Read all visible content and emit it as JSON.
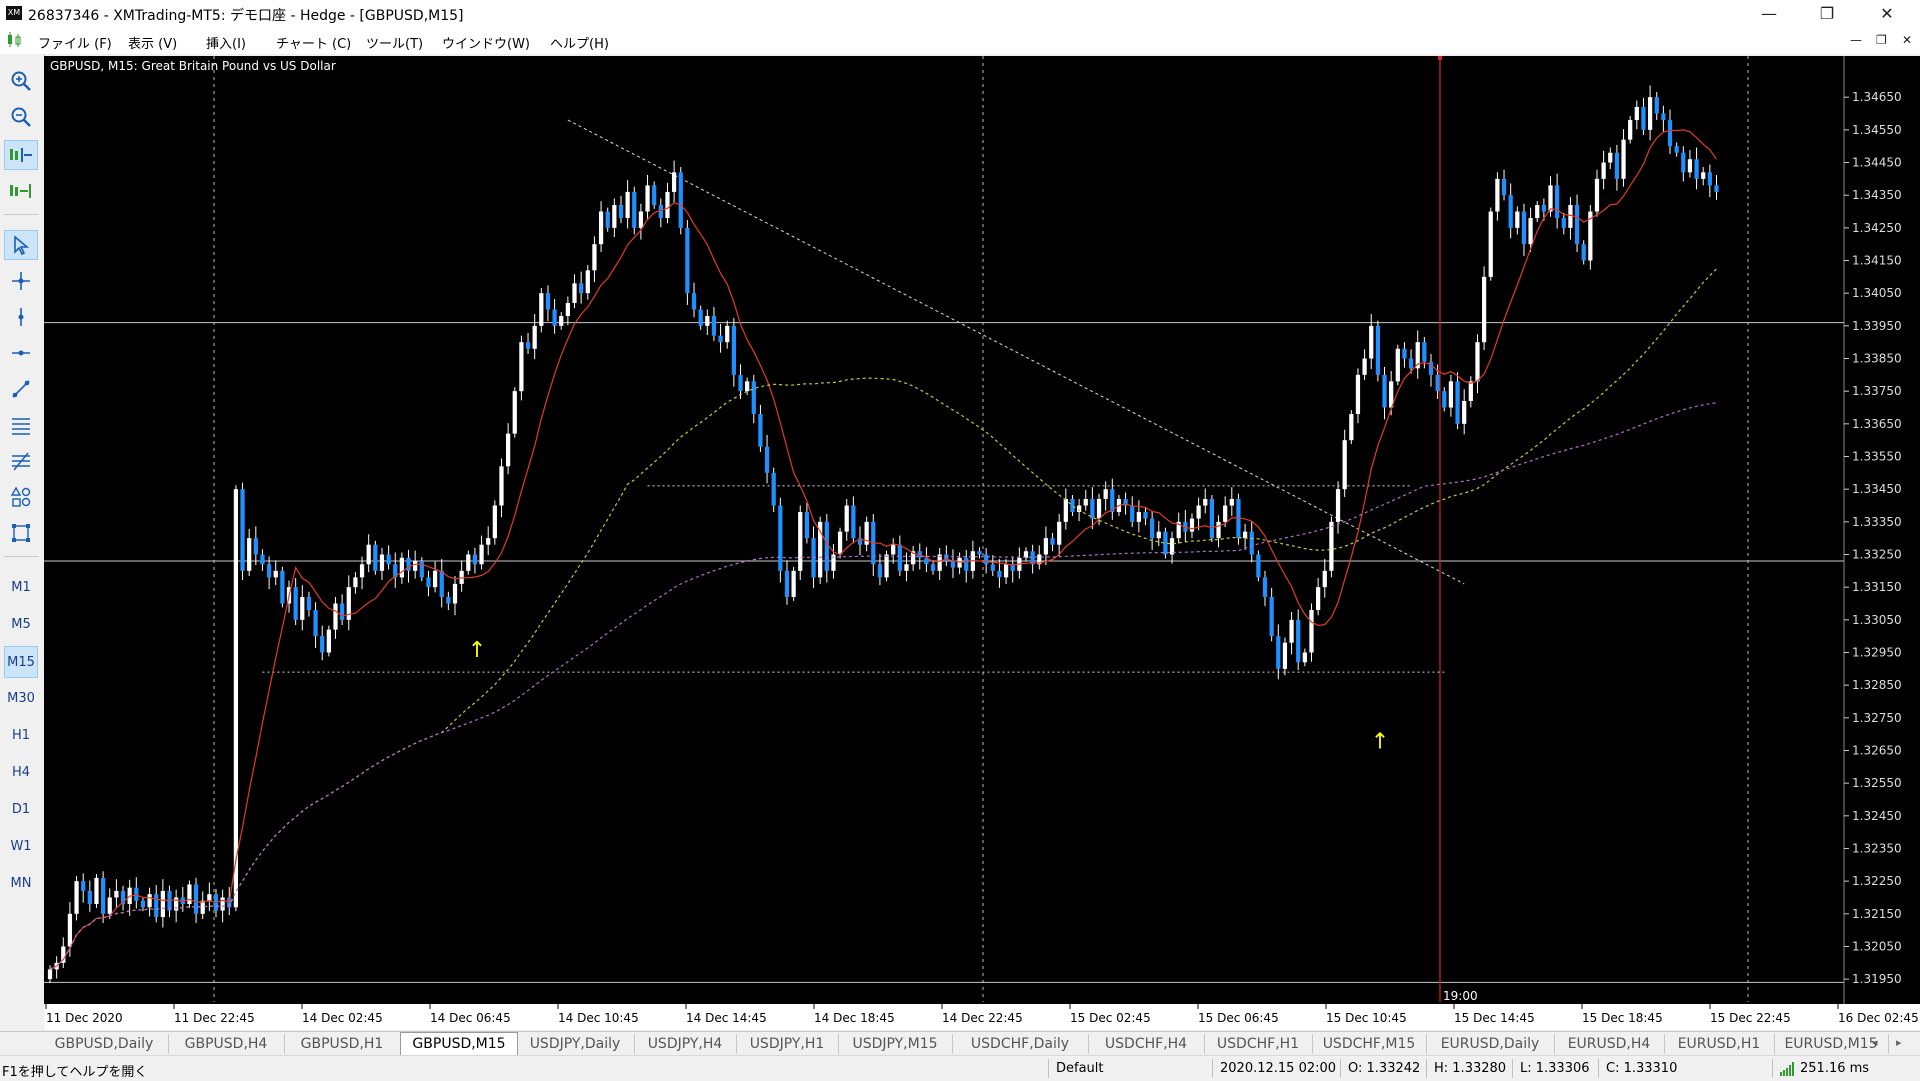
{
  "window": {
    "logo": "XM",
    "title": "26837346 - XMTrading-MT5: デモ口座 - Hedge - [GBPUSD,M15]",
    "minimize": "—",
    "restore": "❐",
    "close": "✕"
  },
  "menu": {
    "items": [
      "ファイル (F)",
      "表示 (V)",
      "挿入(I)",
      "チャート (C)",
      "ツール(T)",
      "ウインドウ(W)",
      "ヘルプ(H)"
    ],
    "mdi_min": "—",
    "mdi_restore": "❐",
    "mdi_close": "✕"
  },
  "toolbar": {
    "tools": [
      {
        "name": "zoom-in-icon",
        "glyph": "⊕"
      },
      {
        "name": "zoom-out-icon",
        "glyph": "⊖"
      },
      {
        "name": "chart-shift-icon",
        "glyph": "⇤"
      },
      {
        "name": "auto-scroll-icon",
        "glyph": "⇥"
      },
      {
        "name": "cursor-icon",
        "glyph": "↖"
      },
      {
        "name": "crosshair-icon",
        "glyph": "✛"
      },
      {
        "name": "vertical-line-icon",
        "glyph": "┃"
      },
      {
        "name": "horizontal-line-icon",
        "glyph": "━"
      },
      {
        "name": "trendline-icon",
        "glyph": "╱"
      },
      {
        "name": "channel-icon",
        "glyph": "☰"
      },
      {
        "name": "fibonacci-icon",
        "glyph": "≋"
      },
      {
        "name": "shapes-icon",
        "glyph": "△"
      },
      {
        "name": "rectangle-icon",
        "glyph": "▢"
      }
    ],
    "timeframes": [
      "M1",
      "M5",
      "M15",
      "M30",
      "H1",
      "H4",
      "D1",
      "W1",
      "MN"
    ],
    "active_timeframe": "M15"
  },
  "chart": {
    "header": "GBPUSD, M15:  Great Britain Pound vs US Dollar",
    "vline_label": "19:00",
    "colors": {
      "background": "#000000",
      "bull_fill": "#ffffff",
      "bear_fill": "#1e90ff",
      "wick": "#ffffff",
      "ma_red": "#e03c28",
      "ma_yellow": "#c8c83c",
      "ma_violet": "#b070c8",
      "vline": "#e02020",
      "arrow": "#ffff00",
      "grid": "#c8c8c8"
    },
    "arrow_glyph": "↑"
  },
  "chart_data": {
    "type": "candlestick",
    "symbol": "GBPUSD",
    "timeframe": "M15",
    "title": "GBPUSD, M15:  Great Britain Pound vs US Dollar",
    "price_ticks": [
      "1.34650",
      "1.34550",
      "1.34450",
      "1.34350",
      "1.34250",
      "1.34150",
      "1.34050",
      "1.33950",
      "1.33850",
      "1.33750",
      "1.33650",
      "1.33550",
      "1.33450",
      "1.33350",
      "1.33250",
      "1.33150",
      "1.33050",
      "1.32950",
      "1.32850",
      "1.32750",
      "1.32650",
      "1.32550",
      "1.32450",
      "1.32350",
      "1.32250",
      "1.32150",
      "1.32050",
      "1.31950"
    ],
    "time_ticks": [
      "11 Dec 2020",
      "11 Dec 22:45",
      "14 Dec 02:45",
      "14 Dec 06:45",
      "14 Dec 10:45",
      "14 Dec 14:45",
      "14 Dec 18:45",
      "14 Dec 22:45",
      "15 Dec 02:45",
      "15 Dec 06:45",
      "15 Dec 10:45",
      "15 Dec 14:45",
      "15 Dec 18:45",
      "15 Dec 22:45",
      "16 Dec 02:45"
    ],
    "ylim": [
      1.3188,
      1.3477
    ],
    "x_span_bars": 270,
    "closes": [
      1.3198,
      1.32,
      1.3205,
      1.3215,
      1.3225,
      1.3222,
      1.3218,
      1.3226,
      1.3215,
      1.322,
      1.3222,
      1.3218,
      1.3223,
      1.3219,
      1.3217,
      1.3221,
      1.3214,
      1.3222,
      1.3216,
      1.322,
      1.3218,
      1.3224,
      1.3215,
      1.3219,
      1.3221,
      1.3216,
      1.322,
      1.3217,
      1.3345,
      1.332,
      1.333,
      1.3325,
      1.3322,
      1.3318,
      1.332,
      1.331,
      1.3315,
      1.3305,
      1.3312,
      1.3308,
      1.33,
      1.3295,
      1.3302,
      1.331,
      1.3305,
      1.3315,
      1.3318,
      1.3322,
      1.3328,
      1.332,
      1.3325,
      1.3322,
      1.3318,
      1.3324,
      1.332,
      1.3323,
      1.3318,
      1.3315,
      1.332,
      1.3312,
      1.331,
      1.3316,
      1.332,
      1.3325,
      1.3322,
      1.3328,
      1.333,
      1.334,
      1.3352,
      1.3362,
      1.3375,
      1.339,
      1.3388,
      1.3395,
      1.3405,
      1.34,
      1.3395,
      1.3398,
      1.3402,
      1.3408,
      1.3405,
      1.3412,
      1.342,
      1.343,
      1.3425,
      1.3432,
      1.3428,
      1.3436,
      1.3425,
      1.343,
      1.3438,
      1.3432,
      1.3428,
      1.3436,
      1.3442,
      1.3425,
      1.3405,
      1.34,
      1.3395,
      1.3398,
      1.3392,
      1.339,
      1.3395,
      1.338,
      1.3375,
      1.3378,
      1.3368,
      1.3358,
      1.335,
      1.334,
      1.332,
      1.3312,
      1.332,
      1.3338,
      1.333,
      1.3318,
      1.3335,
      1.332,
      1.3325,
      1.3332,
      1.334,
      1.333,
      1.3328,
      1.3335,
      1.3322,
      1.3318,
      1.3325,
      1.3328,
      1.332,
      1.3322,
      1.3326,
      1.3324,
      1.3322,
      1.332,
      1.3325,
      1.3323,
      1.3321,
      1.3324,
      1.332,
      1.3326,
      1.3325,
      1.3322,
      1.332,
      1.3318,
      1.3322,
      1.332,
      1.3324,
      1.3326,
      1.3322,
      1.3325,
      1.333,
      1.3328,
      1.3335,
      1.3342,
      1.3338,
      1.334,
      1.3342,
      1.3336,
      1.3342,
      1.3345,
      1.3338,
      1.3342,
      1.334,
      1.3335,
      1.3338,
      1.3336,
      1.333,
      1.3332,
      1.3325,
      1.333,
      1.3335,
      1.3332,
      1.3336,
      1.334,
      1.3342,
      1.333,
      1.3335,
      1.334,
      1.3342,
      1.333,
      1.3332,
      1.3325,
      1.3318,
      1.3312,
      1.33,
      1.329,
      1.3298,
      1.3305,
      1.3292,
      1.3295,
      1.3308,
      1.3315,
      1.332,
      1.3335,
      1.3345,
      1.336,
      1.3368,
      1.338,
      1.3385,
      1.3395,
      1.338,
      1.337,
      1.3378,
      1.3388,
      1.3385,
      1.3382,
      1.339,
      1.3384,
      1.338,
      1.3375,
      1.337,
      1.3378,
      1.3365,
      1.3372,
      1.3378,
      1.339,
      1.341,
      1.343,
      1.344,
      1.3435,
      1.3425,
      1.343,
      1.342,
      1.3428,
      1.3432,
      1.343,
      1.3438,
      1.3428,
      1.3425,
      1.3432,
      1.342,
      1.3415,
      1.343,
      1.344,
      1.3445,
      1.3448,
      1.344,
      1.3452,
      1.3458,
      1.3462,
      1.3455,
      1.3465,
      1.346,
      1.3458,
      1.345,
      1.3448,
      1.3442,
      1.3446,
      1.344,
      1.3442,
      1.3438,
      1.3436
    ],
    "horizontal_lines": [
      1.3396,
      1.3323,
      1.3194
    ],
    "dotted_lines": [
      {
        "price": 1.3346,
        "from_bar": 90,
        "to_bar": 205
      },
      {
        "price": 1.3289,
        "from_bar": 32,
        "to_bar": 210
      }
    ],
    "trendline": {
      "from": [
        78,
        1.3458
      ],
      "to": [
        213,
        1.3316
      ]
    },
    "arrows": [
      {
        "bar": 64,
        "price": 1.3296
      },
      {
        "bar": 200,
        "price": 1.3268
      }
    ],
    "selected_time": "19:00"
  },
  "tabs": {
    "items": [
      "GBPUSD,Daily",
      "GBPUSD,H4",
      "GBPUSD,H1",
      "GBPUSD,M15",
      "USDJPY,Daily",
      "USDJPY,H4",
      "USDJPY,H1",
      "USDJPY,M15",
      "USDCHF,Daily",
      "USDCHF,H4",
      "USDCHF,H1",
      "USDCHF,M15",
      "EURUSD,Daily",
      "EURUSD,H4",
      "EURUSD,H1",
      "EURUSD,M15"
    ],
    "active": "GBPUSD,M15",
    "nav_left": "◂",
    "nav_right": "▸"
  },
  "status": {
    "help": "F1を押してヘルプを開く",
    "profile": "Default",
    "datetime": "2020.12.15 02:00",
    "open": "O: 1.33242",
    "high": "H: 1.33280",
    "low": "L: 1.33306",
    "close": "C: 1.33310",
    "ping": "251.16 ms"
  }
}
